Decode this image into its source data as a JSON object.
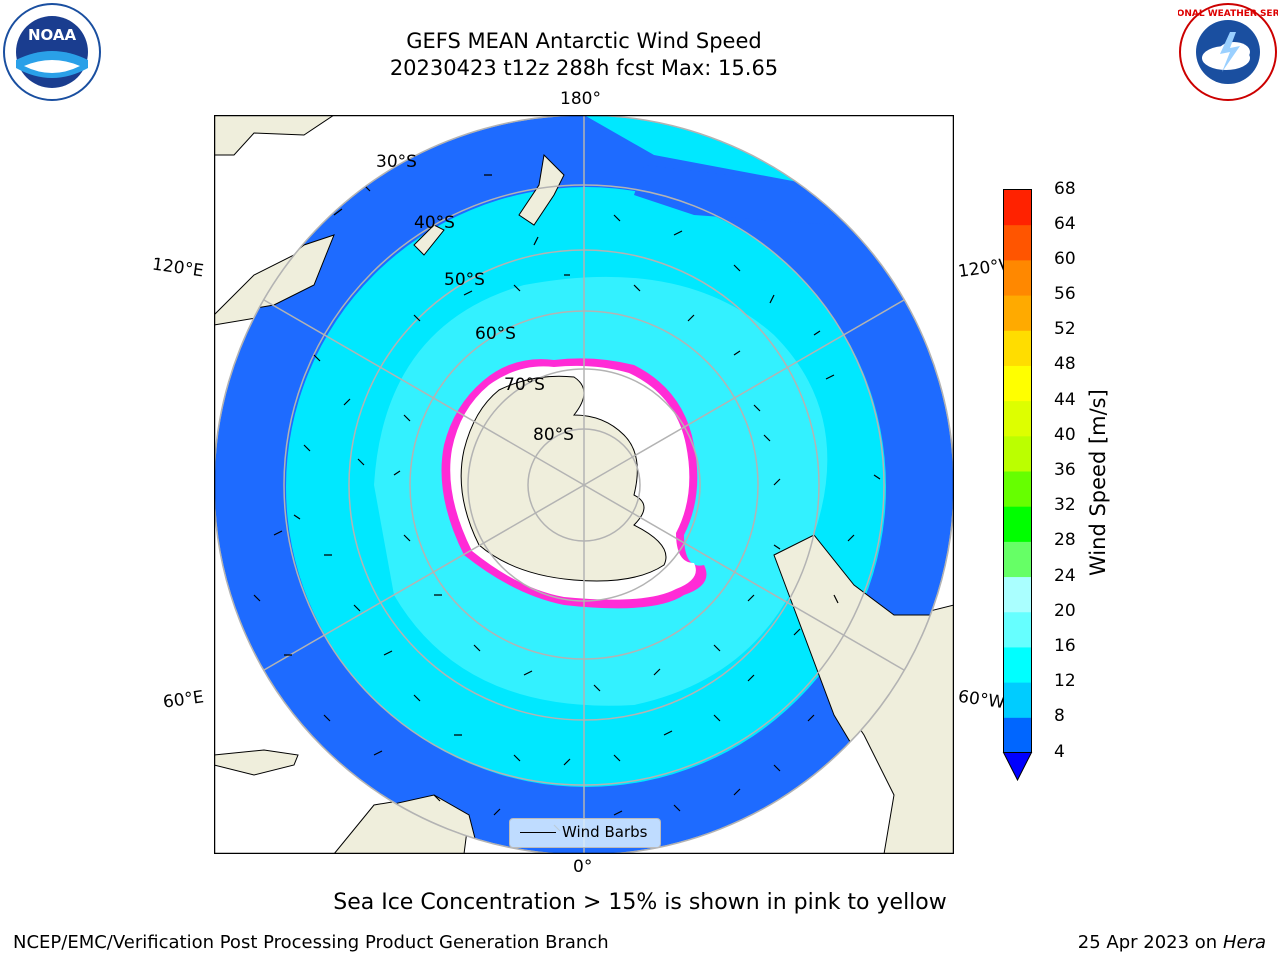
{
  "header": {
    "title_line1": "GEFS MEAN Antarctic Wind Speed",
    "title_line2": "20230423 t12z 288h fcst   Max: 15.65"
  },
  "logos": {
    "left": "NOAA",
    "right": "NATIONAL WEATHER SERVICE"
  },
  "map": {
    "longitude_labels": {
      "top": "180°",
      "bottom": "0°",
      "left_upper": "120°E",
      "left_lower": "60°E",
      "right_upper": "120°W",
      "right_lower": "60°W"
    },
    "latitude_labels": [
      "30°S",
      "40°S",
      "50°S",
      "60°S",
      "70°S",
      "80°S"
    ],
    "legend_label": "Wind Barbs",
    "colors": {
      "ocean_dark": "#1e6bff",
      "ocean_mid": "#00e8ff",
      "ocean_light": "#55f7ff",
      "land": "#efeedc",
      "ice_edge": "#ff2bd6",
      "grid": "#b3b3b3"
    }
  },
  "colorbar": {
    "label": "Wind Speed [m/s]",
    "ticks": [
      "68",
      "64",
      "60",
      "56",
      "52",
      "48",
      "44",
      "40",
      "36",
      "32",
      "28",
      "24",
      "20",
      "16",
      "12",
      "8",
      "4"
    ],
    "colors": [
      "#0000ff",
      "#0066ff",
      "#00ccff",
      "#00ffff",
      "#66ffff",
      "#aaffff",
      "#66ff66",
      "#00ff00",
      "#66ff00",
      "#bbff00",
      "#ddff00",
      "#ffff00",
      "#ffdd00",
      "#ffaa00",
      "#ff8800",
      "#ff5500",
      "#ff2200",
      "#ff0000"
    ]
  },
  "caption": "Sea Ice Concentration > 15% is shown in pink to yellow",
  "footer": {
    "left": "NCEP/EMC/Verification Post Processing Product Generation Branch",
    "date": "25 Apr 2023 on ",
    "machine": "Hera"
  }
}
